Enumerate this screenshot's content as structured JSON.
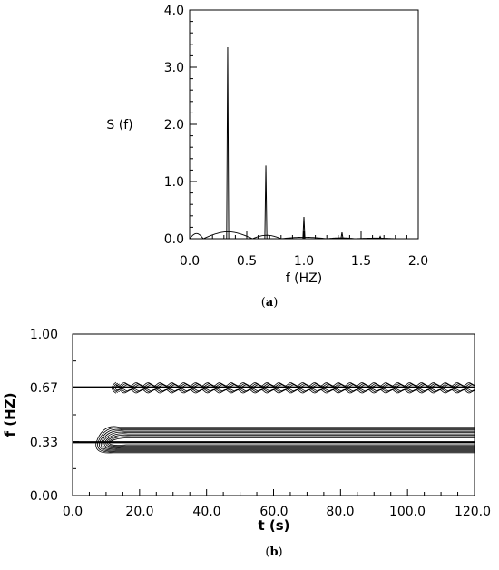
{
  "chart_data": [
    {
      "type": "line",
      "caption_letter": "a",
      "xlabel": "f (HZ)",
      "ylabel": "S (f)",
      "xlim": [
        0.0,
        2.0
      ],
      "ylim": [
        0.0,
        4.0
      ],
      "x_ticks": [
        "0.0",
        "0.5",
        "1.0",
        "1.5",
        "2.0"
      ],
      "y_ticks": [
        "0.0",
        "1.0",
        "2.0",
        "3.0",
        "4.0"
      ],
      "grid": false,
      "peaks": [
        {
          "f": 0.333,
          "S": 3.35
        },
        {
          "f": 0.667,
          "S": 1.28
        },
        {
          "f": 1.0,
          "S": 0.38
        },
        {
          "f": 1.333,
          "S": 0.11
        },
        {
          "f": 1.667,
          "S": 0.04
        }
      ],
      "background_lobes": [
        {
          "f_start": 0.0,
          "f_end": 0.12,
          "S_max": 0.09
        },
        {
          "f_start": 0.12,
          "f_end": 0.55,
          "S_max": 0.12
        },
        {
          "f_start": 0.55,
          "f_end": 0.8,
          "S_max": 0.06
        },
        {
          "f_start": 0.8,
          "f_end": 1.2,
          "S_max": 0.025
        },
        {
          "f_start": 1.2,
          "f_end": 1.45,
          "S_max": 0.015
        },
        {
          "f_start": 1.45,
          "f_end": 1.8,
          "S_max": 0.01
        }
      ]
    },
    {
      "type": "heatmap",
      "subtype": "contour",
      "caption_letter": "b",
      "xlabel": "t (s)",
      "ylabel": "f (HZ)",
      "xlim": [
        0.0,
        120.0
      ],
      "ylim": [
        0.0,
        1.0
      ],
      "x_ticks": [
        "0.0",
        "20.0",
        "40.0",
        "60.0",
        "80.0",
        "100.0",
        "120.0"
      ],
      "y_ticks": [
        "0.00",
        "0.33",
        "0.67",
        "1.00"
      ],
      "grid": false,
      "reference_lines": [
        0.33,
        0.67
      ],
      "ridges": [
        {
          "f_center": 0.333,
          "t_start": 7,
          "contour_levels": 9,
          "half_width": 0.085
        },
        {
          "f_center": 0.667,
          "t_start": 11,
          "contour_levels": 3,
          "half_width": 0.022
        }
      ]
    }
  ],
  "captions": {
    "a": {
      "open": "(",
      "letter": "a",
      "close": ")"
    },
    "b": {
      "open": "(",
      "letter": "b",
      "close": ")"
    }
  }
}
